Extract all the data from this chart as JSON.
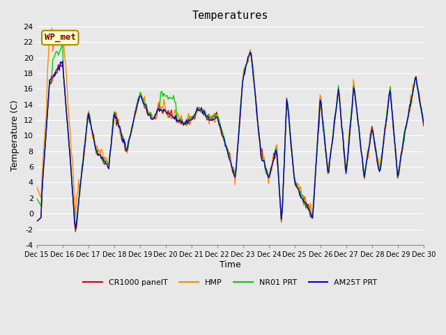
{
  "title": "Temperatures",
  "xlabel": "Time",
  "ylabel": "Temperature (C)",
  "ylim": [
    -4,
    24
  ],
  "yticks": [
    -4,
    -2,
    0,
    2,
    4,
    6,
    8,
    10,
    12,
    14,
    16,
    18,
    20,
    22,
    24
  ],
  "bg_color": "#e8e8e8",
  "plot_bg_color": "#e8e8e8",
  "annotation_text": "WP_met",
  "annotation_bg": "#ffffcc",
  "annotation_border": "#aa8800",
  "annotation_fg": "#880000",
  "legend_labels": [
    "CR1000 panelT",
    "HMP",
    "NR01 PRT",
    "AM25T PRT"
  ],
  "legend_colors": [
    "#cc0000",
    "#ff8800",
    "#00cc00",
    "#0000cc"
  ],
  "legend_linestyles": [
    "-",
    "-",
    "-",
    "-"
  ],
  "x_tick_labels": [
    "Dec 15",
    "Dec 16",
    "Dec 17",
    "Dec 18",
    "Dec 19",
    "Dec 20",
    "Dec 21",
    "Dec 22",
    "Dec 23",
    "Dec 24",
    "Dec 25",
    "Dec 26",
    "Dec 27",
    "Dec 28",
    "Dec 29",
    "Dec 30"
  ],
  "n_points": 360
}
